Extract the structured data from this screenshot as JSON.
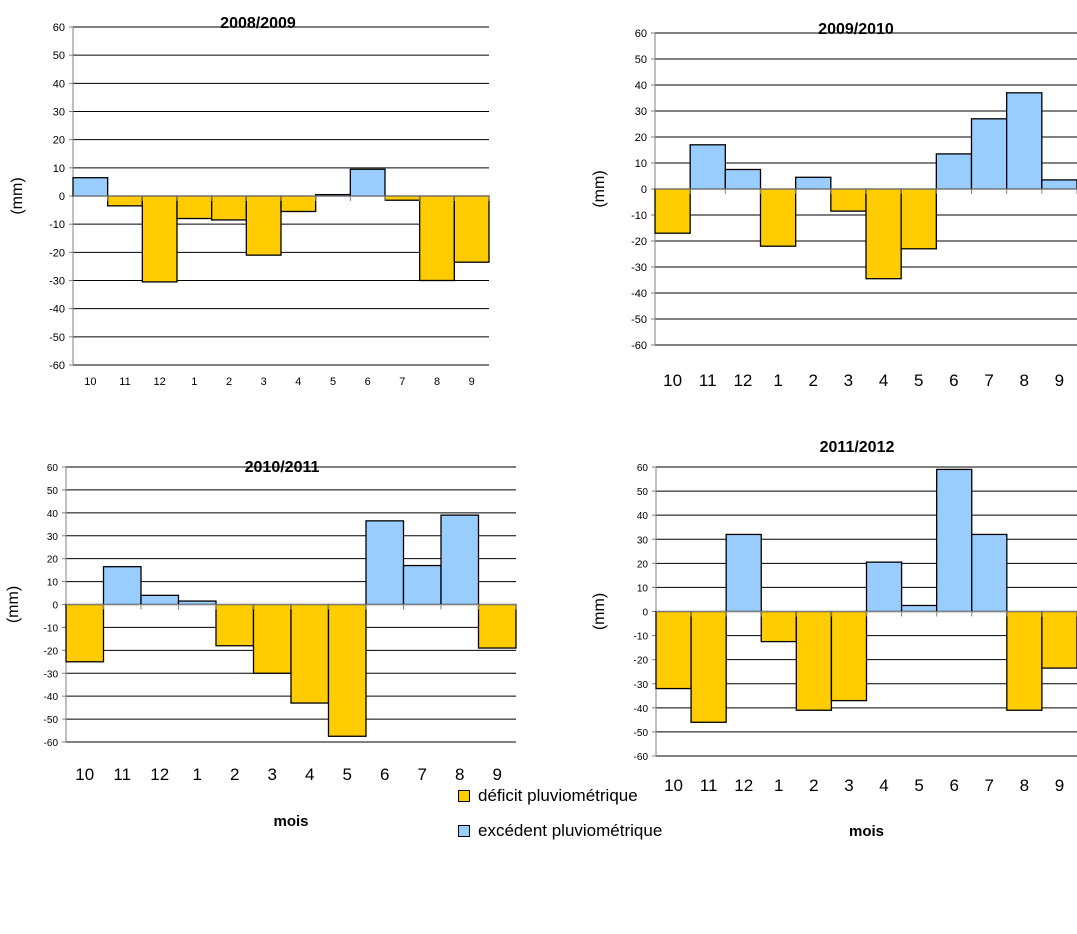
{
  "colors": {
    "deficit": "#FFCC00",
    "excedent": "#99CCFF",
    "axis": "#808080",
    "grid": "#000000",
    "edge": "#000000"
  },
  "legend": {
    "deficit_label": "déficit pluviométrique",
    "excedent_label": "excédent pluviométrique"
  },
  "chart_data": [
    {
      "type": "bar",
      "title": "2008/2009",
      "ylabel": "(mm)",
      "xlabel": "",
      "ylim": [
        -60,
        60
      ],
      "yticks": [
        60,
        50,
        40,
        30,
        20,
        10,
        0,
        -10,
        -20,
        -30,
        -40,
        -50,
        -60
      ],
      "categories": [
        "10",
        "11",
        "12",
        "1",
        "2",
        "3",
        "4",
        "5",
        "6",
        "7",
        "8",
        "9"
      ],
      "values": [
        6.5,
        -3.5,
        -30.5,
        -8,
        -8.5,
        -21,
        -5.5,
        0.5,
        9.5,
        -1.5,
        -30,
        -23.5
      ],
      "grid": true
    },
    {
      "type": "bar",
      "title": "2009/2010",
      "ylabel": "(mm)",
      "xlabel": "",
      "ylim": [
        -60,
        60
      ],
      "yticks": [
        60,
        50,
        40,
        30,
        20,
        10,
        0,
        -10,
        -20,
        -30,
        -40,
        -50,
        -60
      ],
      "categories": [
        "10",
        "11",
        "12",
        "1",
        "2",
        "3",
        "4",
        "5",
        "6",
        "7",
        "8",
        "9"
      ],
      "values": [
        -17,
        17,
        7.5,
        -22,
        4.5,
        -8.5,
        -34.5,
        -23,
        13.5,
        27,
        37,
        3.5
      ],
      "grid": true
    },
    {
      "type": "bar",
      "title": "2010/2011",
      "ylabel": "(mm)",
      "xlabel": "mois",
      "ylim": [
        -60,
        60
      ],
      "yticks": [
        60,
        50,
        40,
        30,
        20,
        10,
        0,
        -10,
        -20,
        -30,
        -40,
        -50,
        -60
      ],
      "categories": [
        "10",
        "11",
        "12",
        "1",
        "2",
        "3",
        "4",
        "5",
        "6",
        "7",
        "8",
        "9"
      ],
      "values": [
        -25,
        16.5,
        4,
        1.5,
        -18,
        -30,
        -43,
        -57.5,
        36.5,
        17,
        39,
        -19
      ],
      "grid": true
    },
    {
      "type": "bar",
      "title": "2011/2012",
      "ylabel": "(mm)",
      "xlabel": "mois",
      "ylim": [
        -60,
        60
      ],
      "yticks": [
        60,
        50,
        40,
        30,
        20,
        10,
        0,
        -10,
        -20,
        -30,
        -40,
        -50,
        -60
      ],
      "categories": [
        "10",
        "11",
        "12",
        "1",
        "2",
        "3",
        "4",
        "5",
        "6",
        "7",
        "8",
        "9"
      ],
      "values": [
        -32,
        -46,
        32,
        -12.5,
        -41,
        -37,
        20.5,
        2.5,
        59,
        32,
        -41,
        -23.5
      ],
      "grid": true
    }
  ]
}
